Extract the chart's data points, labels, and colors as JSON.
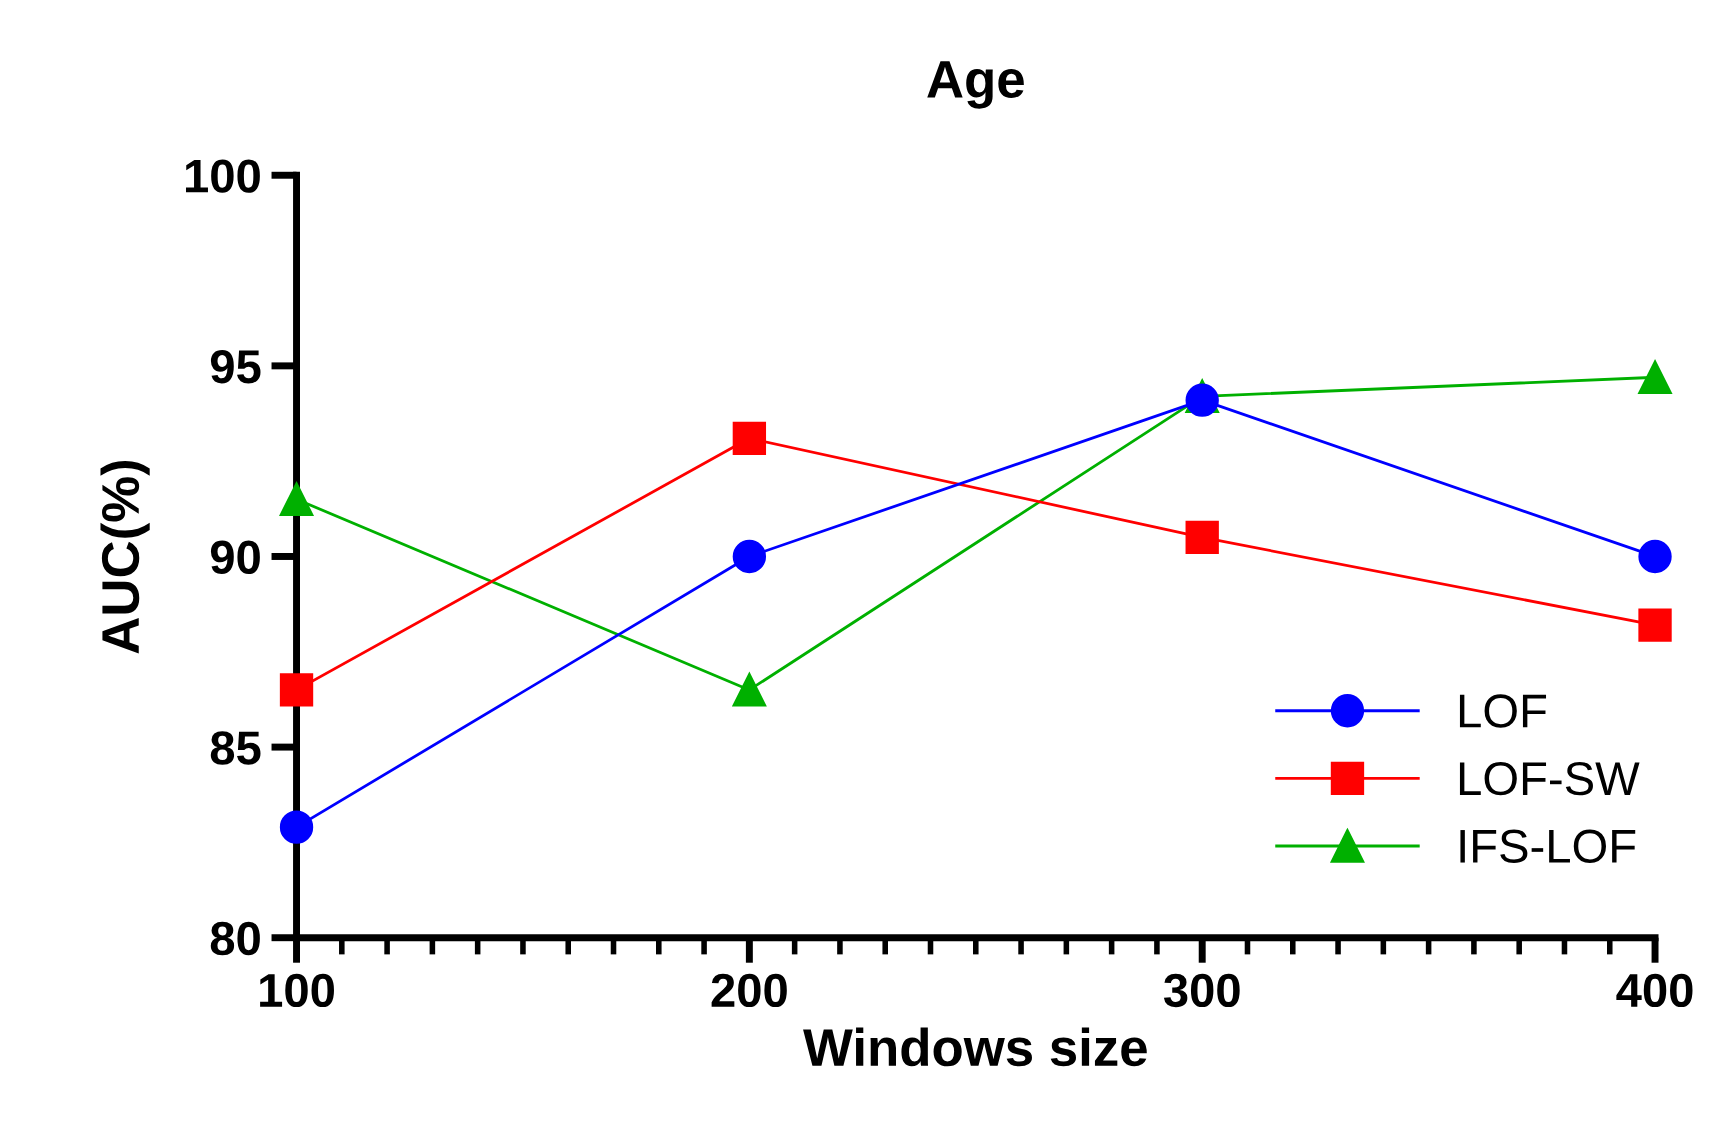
{
  "chart_data": {
    "type": "line",
    "title": "Age",
    "xlabel": "Windows size",
    "ylabel": "AUC(%)",
    "x": [
      100,
      200,
      300,
      400
    ],
    "series": [
      {
        "name": "LOF",
        "color": "#0000ff",
        "marker": "circle",
        "values": [
          82.9,
          90.0,
          94.1,
          90.0
        ]
      },
      {
        "name": "LOF-SW",
        "color": "#ff0000",
        "marker": "square",
        "values": [
          86.5,
          93.1,
          90.5,
          88.2
        ]
      },
      {
        "name": "IFS-LOF",
        "color": "#00b000",
        "marker": "triangle",
        "values": [
          91.5,
          86.5,
          94.2,
          94.7
        ]
      }
    ],
    "xlim": [
      100,
      400
    ],
    "xticks": [
      100,
      200,
      300,
      400
    ],
    "ylim": [
      80,
      100
    ],
    "yticks": [
      80,
      85,
      90,
      95,
      100
    ],
    "grid": false,
    "legend": "bottom right",
    "line_style": "solid"
  }
}
